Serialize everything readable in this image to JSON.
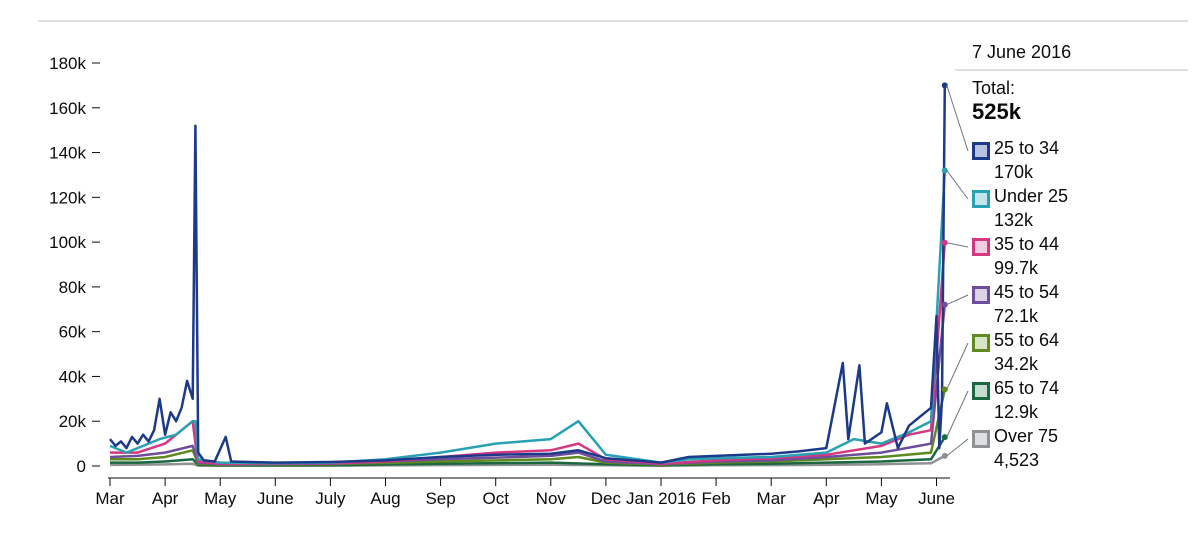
{
  "chart_data": {
    "type": "line",
    "title": "",
    "xlabel": "",
    "ylabel": "",
    "ylim": [
      0,
      180000
    ],
    "y_ticks": [
      {
        "value": 0,
        "label": "0"
      },
      {
        "value": 20000,
        "label": "20k"
      },
      {
        "value": 40000,
        "label": "40k"
      },
      {
        "value": 60000,
        "label": "60k"
      },
      {
        "value": 80000,
        "label": "80k"
      },
      {
        "value": 100000,
        "label": "100k"
      },
      {
        "value": 120000,
        "label": "120k"
      },
      {
        "value": 140000,
        "label": "140k"
      },
      {
        "value": 160000,
        "label": "160k"
      },
      {
        "value": 180000,
        "label": "180k"
      }
    ],
    "x_ticks": [
      {
        "month": 0,
        "label": "Mar"
      },
      {
        "month": 1,
        "label": "Apr"
      },
      {
        "month": 2,
        "label": "May"
      },
      {
        "month": 3,
        "label": "June"
      },
      {
        "month": 4,
        "label": "July"
      },
      {
        "month": 5,
        "label": "Aug"
      },
      {
        "month": 6,
        "label": "Sep"
      },
      {
        "month": 7,
        "label": "Oct"
      },
      {
        "month": 8,
        "label": "Nov"
      },
      {
        "month": 9,
        "label": "Dec"
      },
      {
        "month": 10,
        "label": "Jan 2016"
      },
      {
        "month": 11,
        "label": "Feb"
      },
      {
        "month": 12,
        "label": "Mar"
      },
      {
        "month": 13,
        "label": "Apr"
      },
      {
        "month": 14,
        "label": "May"
      },
      {
        "month": 15,
        "label": "June"
      }
    ],
    "x_range": [
      0,
      15.2
    ],
    "series": [
      {
        "name": "25 to 34",
        "color": "#1d3a8a",
        "points": [
          [
            0,
            12000
          ],
          [
            0.1,
            9000
          ],
          [
            0.2,
            11000
          ],
          [
            0.3,
            8000
          ],
          [
            0.4,
            13000
          ],
          [
            0.5,
            10000
          ],
          [
            0.6,
            14000
          ],
          [
            0.7,
            11000
          ],
          [
            0.8,
            16000
          ],
          [
            0.9,
            30000
          ],
          [
            1.0,
            14000
          ],
          [
            1.1,
            24000
          ],
          [
            1.2,
            20000
          ],
          [
            1.3,
            26000
          ],
          [
            1.4,
            38000
          ],
          [
            1.5,
            30000
          ],
          [
            1.55,
            152000
          ],
          [
            1.6,
            6000
          ],
          [
            1.7,
            2500
          ],
          [
            1.9,
            2000
          ],
          [
            2.1,
            13000
          ],
          [
            2.2,
            2000
          ],
          [
            3,
            1500
          ],
          [
            4,
            1800
          ],
          [
            5,
            2500
          ],
          [
            6,
            4000
          ],
          [
            7,
            5000
          ],
          [
            8,
            5500
          ],
          [
            8.5,
            7000
          ],
          [
            9,
            3500
          ],
          [
            10,
            1500
          ],
          [
            10.5,
            4000
          ],
          [
            11,
            4500
          ],
          [
            12,
            5500
          ],
          [
            12.5,
            6500
          ],
          [
            13,
            8000
          ],
          [
            13.3,
            46000
          ],
          [
            13.4,
            12000
          ],
          [
            13.6,
            45000
          ],
          [
            13.7,
            10000
          ],
          [
            14,
            15000
          ],
          [
            14.1,
            28000
          ],
          [
            14.3,
            8000
          ],
          [
            14.5,
            18000
          ],
          [
            14.7,
            22000
          ],
          [
            14.9,
            26000
          ],
          [
            15.0,
            67000
          ],
          [
            15.05,
            8000
          ],
          [
            15.1,
            30000
          ],
          [
            15.15,
            170000
          ]
        ]
      },
      {
        "name": "Under 25",
        "color": "#28a1b5",
        "points": [
          [
            0,
            9000
          ],
          [
            0.3,
            6000
          ],
          [
            0.6,
            9000
          ],
          [
            0.9,
            12000
          ],
          [
            1.2,
            14000
          ],
          [
            1.5,
            20000
          ],
          [
            1.55,
            20000
          ],
          [
            1.6,
            3000
          ],
          [
            2,
            1500
          ],
          [
            3,
            1200
          ],
          [
            4,
            1500
          ],
          [
            5,
            3000
          ],
          [
            6,
            6000
          ],
          [
            7,
            10000
          ],
          [
            8,
            12000
          ],
          [
            8.5,
            20000
          ],
          [
            9,
            5000
          ],
          [
            10,
            1500
          ],
          [
            10.5,
            3000
          ],
          [
            11,
            3500
          ],
          [
            12,
            4000
          ],
          [
            13,
            6000
          ],
          [
            13.5,
            12000
          ],
          [
            14,
            10000
          ],
          [
            14.5,
            15000
          ],
          [
            14.9,
            20000
          ],
          [
            15.15,
            132000
          ]
        ]
      },
      {
        "name": "35 to 44",
        "color": "#d53880",
        "points": [
          [
            0,
            6000
          ],
          [
            0.5,
            6000
          ],
          [
            1.0,
            10000
          ],
          [
            1.5,
            20000
          ],
          [
            1.55,
            10000
          ],
          [
            1.6,
            2000
          ],
          [
            2,
            1000
          ],
          [
            3,
            1000
          ],
          [
            4,
            1200
          ],
          [
            5,
            2000
          ],
          [
            6,
            4000
          ],
          [
            7,
            6000
          ],
          [
            8,
            7000
          ],
          [
            8.5,
            10000
          ],
          [
            9,
            3000
          ],
          [
            10,
            1000
          ],
          [
            11,
            2500
          ],
          [
            12,
            3500
          ],
          [
            13,
            5000
          ],
          [
            14,
            9000
          ],
          [
            14.5,
            14000
          ],
          [
            14.9,
            16000
          ],
          [
            15.15,
            99700
          ]
        ]
      },
      {
        "name": "45 to 54",
        "color": "#6f4d9c",
        "points": [
          [
            0,
            4000
          ],
          [
            0.5,
            4500
          ],
          [
            1.0,
            6000
          ],
          [
            1.5,
            9000
          ],
          [
            1.6,
            1500
          ],
          [
            2,
            800
          ],
          [
            4,
            1000
          ],
          [
            6,
            3000
          ],
          [
            8,
            4500
          ],
          [
            8.5,
            6000
          ],
          [
            9,
            2000
          ],
          [
            10,
            800
          ],
          [
            11,
            2000
          ],
          [
            12,
            2500
          ],
          [
            13,
            4000
          ],
          [
            14,
            6000
          ],
          [
            14.9,
            10000
          ],
          [
            15.15,
            72100
          ]
        ]
      },
      {
        "name": "55 to 64",
        "color": "#5e8a1e",
        "points": [
          [
            0,
            3000
          ],
          [
            0.5,
            3000
          ],
          [
            1.0,
            4000
          ],
          [
            1.5,
            7000
          ],
          [
            1.6,
            1000
          ],
          [
            2,
            600
          ],
          [
            4,
            800
          ],
          [
            6,
            2000
          ],
          [
            8,
            3000
          ],
          [
            8.5,
            4000
          ],
          [
            9,
            1500
          ],
          [
            10,
            600
          ],
          [
            11,
            1500
          ],
          [
            12,
            2000
          ],
          [
            13,
            3000
          ],
          [
            14,
            4000
          ],
          [
            14.9,
            6000
          ],
          [
            15.15,
            34200
          ]
        ]
      },
      {
        "name": "65 to 74",
        "color": "#1a6840",
        "points": [
          [
            0,
            1500
          ],
          [
            0.5,
            1500
          ],
          [
            1.0,
            2000
          ],
          [
            1.5,
            3000
          ],
          [
            1.6,
            500
          ],
          [
            2,
            300
          ],
          [
            4,
            400
          ],
          [
            6,
            1000
          ],
          [
            8,
            1500
          ],
          [
            9,
            800
          ],
          [
            10,
            300
          ],
          [
            11,
            800
          ],
          [
            12,
            1000
          ],
          [
            13,
            1500
          ],
          [
            14,
            2000
          ],
          [
            14.9,
            3000
          ],
          [
            15.15,
            12900
          ]
        ]
      },
      {
        "name": "Over 75",
        "color": "#8e9294",
        "points": [
          [
            0,
            500
          ],
          [
            1.0,
            700
          ],
          [
            1.5,
            1000
          ],
          [
            1.6,
            200
          ],
          [
            2,
            100
          ],
          [
            4,
            150
          ],
          [
            6,
            400
          ],
          [
            8,
            600
          ],
          [
            9,
            300
          ],
          [
            10,
            100
          ],
          [
            11,
            300
          ],
          [
            12,
            400
          ],
          [
            13,
            500
          ],
          [
            14,
            800
          ],
          [
            14.9,
            1200
          ],
          [
            15.15,
            4523
          ]
        ]
      }
    ]
  },
  "legend": {
    "date": "7 June 2016",
    "total_label": "Total:",
    "total_value": "525k",
    "items": [
      {
        "name": "25 to 34",
        "value": "170k",
        "color": "#1d3a8a",
        "fill": "#b8c2e0"
      },
      {
        "name": "Under 25",
        "value": "132k",
        "color": "#28a1b5",
        "fill": "#c2e6ec"
      },
      {
        "name": "35 to 44",
        "value": "99.7k",
        "color": "#d53880",
        "fill": "#f5cde0"
      },
      {
        "name": "45 to 54",
        "value": "72.1k",
        "color": "#6f4d9c",
        "fill": "#ddd2ea"
      },
      {
        "name": "55 to 64",
        "value": "34.2k",
        "color": "#5e8a1e",
        "fill": "#d8e6c4"
      },
      {
        "name": "65 to 74",
        "value": "12.9k",
        "color": "#1a6840",
        "fill": "#c5ddd0"
      },
      {
        "name": "Over 75",
        "value": "4,523",
        "color": "#8e9294",
        "fill": "#dddfe0"
      }
    ]
  }
}
